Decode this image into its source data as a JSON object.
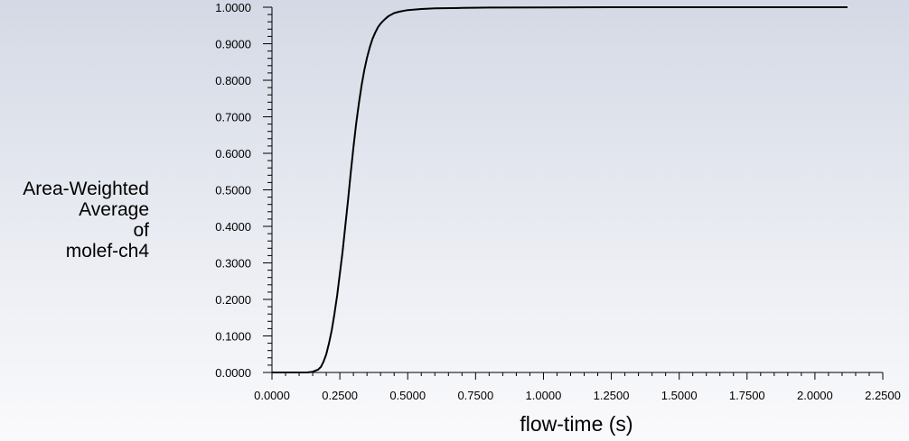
{
  "chart_data": {
    "type": "line",
    "title": "",
    "xlabel": "flow-time (s)",
    "ylabel_lines": [
      "Area-Weighted",
      "Average",
      "of",
      "molef-ch4"
    ],
    "xlim": [
      0,
      2.25
    ],
    "ylim": [
      0,
      1
    ],
    "x_ticks": [
      "0.0000",
      "0.2500",
      "0.5000",
      "0.7500",
      "1.0000",
      "1.2500",
      "1.5000",
      "1.7500",
      "2.0000",
      "2.2500"
    ],
    "y_ticks": [
      "0.0000",
      "0.1000",
      "0.2000",
      "0.3000",
      "0.4000",
      "0.5000",
      "0.6000",
      "0.7000",
      "0.8000",
      "0.9000",
      "1.0000"
    ],
    "grid": false,
    "line_color": "#000000",
    "series": [
      {
        "x": [
          0.0,
          0.05,
          0.1,
          0.13,
          0.15,
          0.17,
          0.18,
          0.19,
          0.2,
          0.21,
          0.22,
          0.23,
          0.24,
          0.25,
          0.26,
          0.27,
          0.28,
          0.29,
          0.3,
          0.31,
          0.32,
          0.33,
          0.34,
          0.35,
          0.36,
          0.37,
          0.38,
          0.39,
          0.4,
          0.41,
          0.42,
          0.43,
          0.44,
          0.45,
          0.47,
          0.5,
          0.55,
          0.6,
          0.7,
          0.8,
          1.0,
          1.25,
          1.5,
          2.12
        ],
        "y": [
          0.0,
          0.0,
          0.0,
          0.0,
          0.002,
          0.008,
          0.015,
          0.03,
          0.05,
          0.08,
          0.115,
          0.16,
          0.21,
          0.27,
          0.33,
          0.4,
          0.47,
          0.545,
          0.615,
          0.68,
          0.735,
          0.785,
          0.828,
          0.862,
          0.89,
          0.913,
          0.93,
          0.945,
          0.955,
          0.963,
          0.97,
          0.976,
          0.98,
          0.984,
          0.988,
          0.992,
          0.995,
          0.997,
          0.998,
          0.999,
          0.9995,
          1.0,
          1.0,
          1.0
        ]
      }
    ]
  }
}
